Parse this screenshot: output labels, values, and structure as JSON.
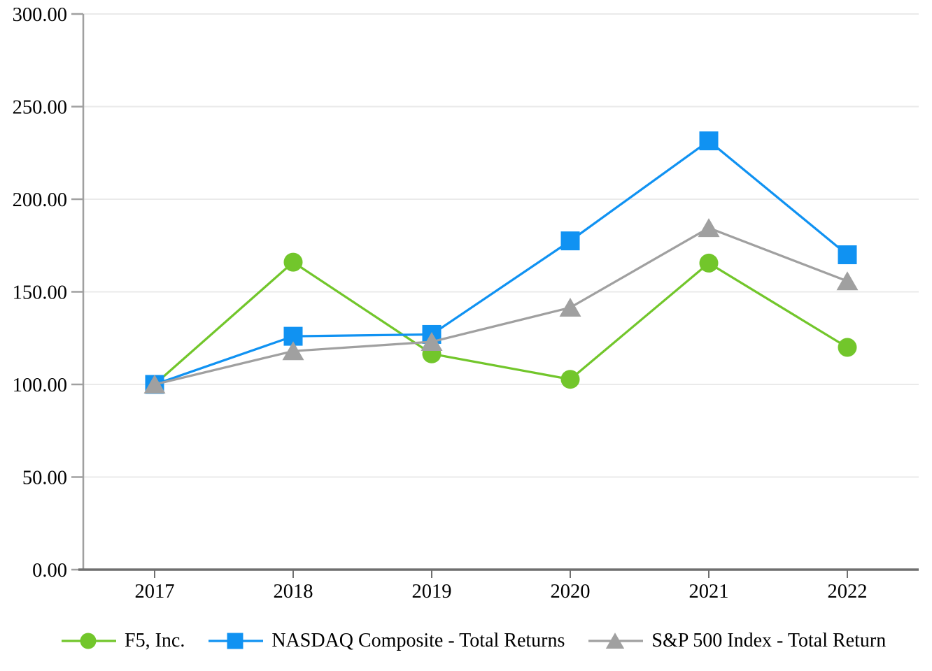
{
  "chart_data": {
    "type": "line",
    "title": "",
    "xlabel": "",
    "ylabel": "",
    "categories": [
      "2017",
      "2018",
      "2019",
      "2020",
      "2021",
      "2022"
    ],
    "series": [
      {
        "name": "F5, Inc.",
        "marker": "circle",
        "color": "#72c62b",
        "values": [
          100.0,
          166.0,
          116.5,
          102.75,
          165.5,
          120.0
        ]
      },
      {
        "name": "NASDAQ Composite - Total Returns",
        "marker": "square",
        "color": "#1092f2",
        "values": [
          100.0,
          126.0,
          127.0,
          177.5,
          231.5,
          170.0
        ]
      },
      {
        "name": "S&P 500 Index - Total Return",
        "marker": "triangle",
        "color": "#a0a0a0",
        "values": [
          100.0,
          118.0,
          123.0,
          141.5,
          184.5,
          155.75
        ]
      }
    ],
    "ylim": [
      0,
      300
    ],
    "y_tick_step": 50,
    "y_tick_labels": [
      "300.00",
      "250.00",
      "200.00",
      "150.00",
      "100.00",
      "50.00",
      "0.00"
    ],
    "grid": "horizontal",
    "grid_color": "#eaeaea",
    "axis_color": "#6f6f6f",
    "y_axis_color": "#a0a0a0",
    "legend_position": "bottom"
  }
}
